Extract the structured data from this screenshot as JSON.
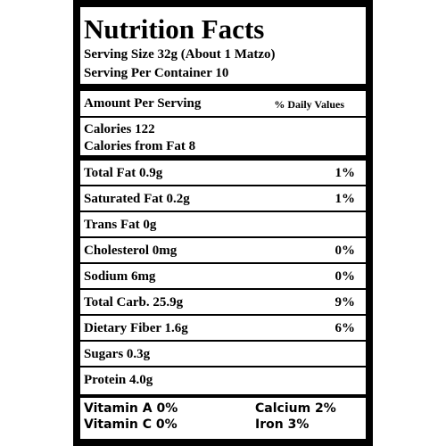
{
  "label": {
    "title": "Nutrition Facts",
    "serving_size": "Serving Size 32g (About 1 Matzo)",
    "servings_per_container": "Serving Per Container 10",
    "amount_header": "Amount Per Serving",
    "daily_values_header": "% Daily Values",
    "calories": "Calories 122",
    "calories_from_fat": "Calories from Fat 8",
    "nutrients": [
      {
        "name": "Total Fat 0.9g",
        "dv": "1%"
      },
      {
        "name": "Saturated Fat 0.2g",
        "dv": "1%"
      },
      {
        "name": "Trans Fat 0g",
        "dv": ""
      },
      {
        "name": "Cholesterol 0mg",
        "dv": "0%"
      },
      {
        "name": "Sodium 6mg",
        "dv": "0%"
      },
      {
        "name": "Total Carb. 25.9g",
        "dv": "9%"
      },
      {
        "name": "Dietary Fiber 1.6g",
        "dv": "6%"
      },
      {
        "name": "Sugars 0.3g",
        "dv": ""
      },
      {
        "name": "Protein 4.0g",
        "dv": ""
      }
    ],
    "vitamins": {
      "vitamin_a": "Vitamin A 0%",
      "calcium": "Calcium 2%",
      "vitamin_c": "Vitamin C 0%",
      "iron": "Iron 3%"
    }
  }
}
